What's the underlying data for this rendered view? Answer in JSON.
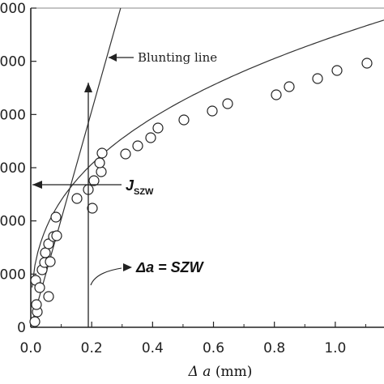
{
  "chart_data": {
    "type": "scatter",
    "x_ticks": [
      "0.0",
      "0.2",
      "0.4",
      "0.6",
      "0.8",
      "1.0"
    ],
    "y_ticks": [
      "0",
      "000",
      "000",
      "000",
      "000",
      "000",
      "000"
    ],
    "xlabel_symbol": "Δ a",
    "xlabel_unit": "(mm)",
    "xlim": [
      0,
      1.15
    ],
    "ylim": [
      0,
      6
    ],
    "points": [
      {
        "x": 0.01,
        "y": 0.1
      },
      {
        "x": 0.015,
        "y": 0.3
      },
      {
        "x": 0.02,
        "y": 0.55
      },
      {
        "x": 0.025,
        "y": 0.9
      },
      {
        "x": 0.03,
        "y": 1.4
      },
      {
        "x": 0.035,
        "y": 1.9
      },
      {
        "x": 0.04,
        "y": 2.05
      },
      {
        "x": 0.045,
        "y": 2.4
      },
      {
        "x": 0.05,
        "y": 2.7
      },
      {
        "x": 0.055,
        "y": 3.05
      },
      {
        "x": 0.06,
        "y": 3.35
      },
      {
        "x": 0.06,
        "y": 0.6
      },
      {
        "x": 0.065,
        "y": 1.65
      },
      {
        "x": 0.075,
        "y": 3.5
      },
      {
        "x": 0.08,
        "y": 4.15
      },
      {
        "x": 0.085,
        "y": 4.05
      },
      {
        "x": 0.15,
        "y": 4.75
      },
      {
        "x": 0.185,
        "y": 5.05
      },
      {
        "x": 0.205,
        "y": 4.45
      },
      {
        "x": 0.21,
        "y": 5.25
      },
      {
        "x": 0.225,
        "y": 5.9
      },
      {
        "x": 0.23,
        "y": 6.05
      }
    ],
    "points_upper": [
      {
        "x": 0.23,
        "y": 6.05
      },
      {
        "x": 0.31,
        "y": 6.25
      },
      {
        "x": 0.35,
        "y": 6.45
      },
      {
        "x": 0.39,
        "y": 6.6
      },
      {
        "x": 0.42,
        "y": 6.8
      },
      {
        "x": 0.5,
        "y": 6.95
      },
      {
        "x": 0.6,
        "y": 7.1
      },
      {
        "x": 0.65,
        "y": 7.3
      },
      {
        "x": 0.8,
        "y": 7.45
      },
      {
        "x": 0.85,
        "y": 7.6
      },
      {
        "x": 0.94,
        "y": 7.75
      },
      {
        "x": 1.0,
        "y": 7.9
      },
      {
        "x": 1.11,
        "y": 8.05
      }
    ],
    "annotations": {
      "blunting_line": "Blunting line",
      "j_main": "J",
      "j_sub": "SZW",
      "szw_label": "Δa = SZW"
    }
  }
}
